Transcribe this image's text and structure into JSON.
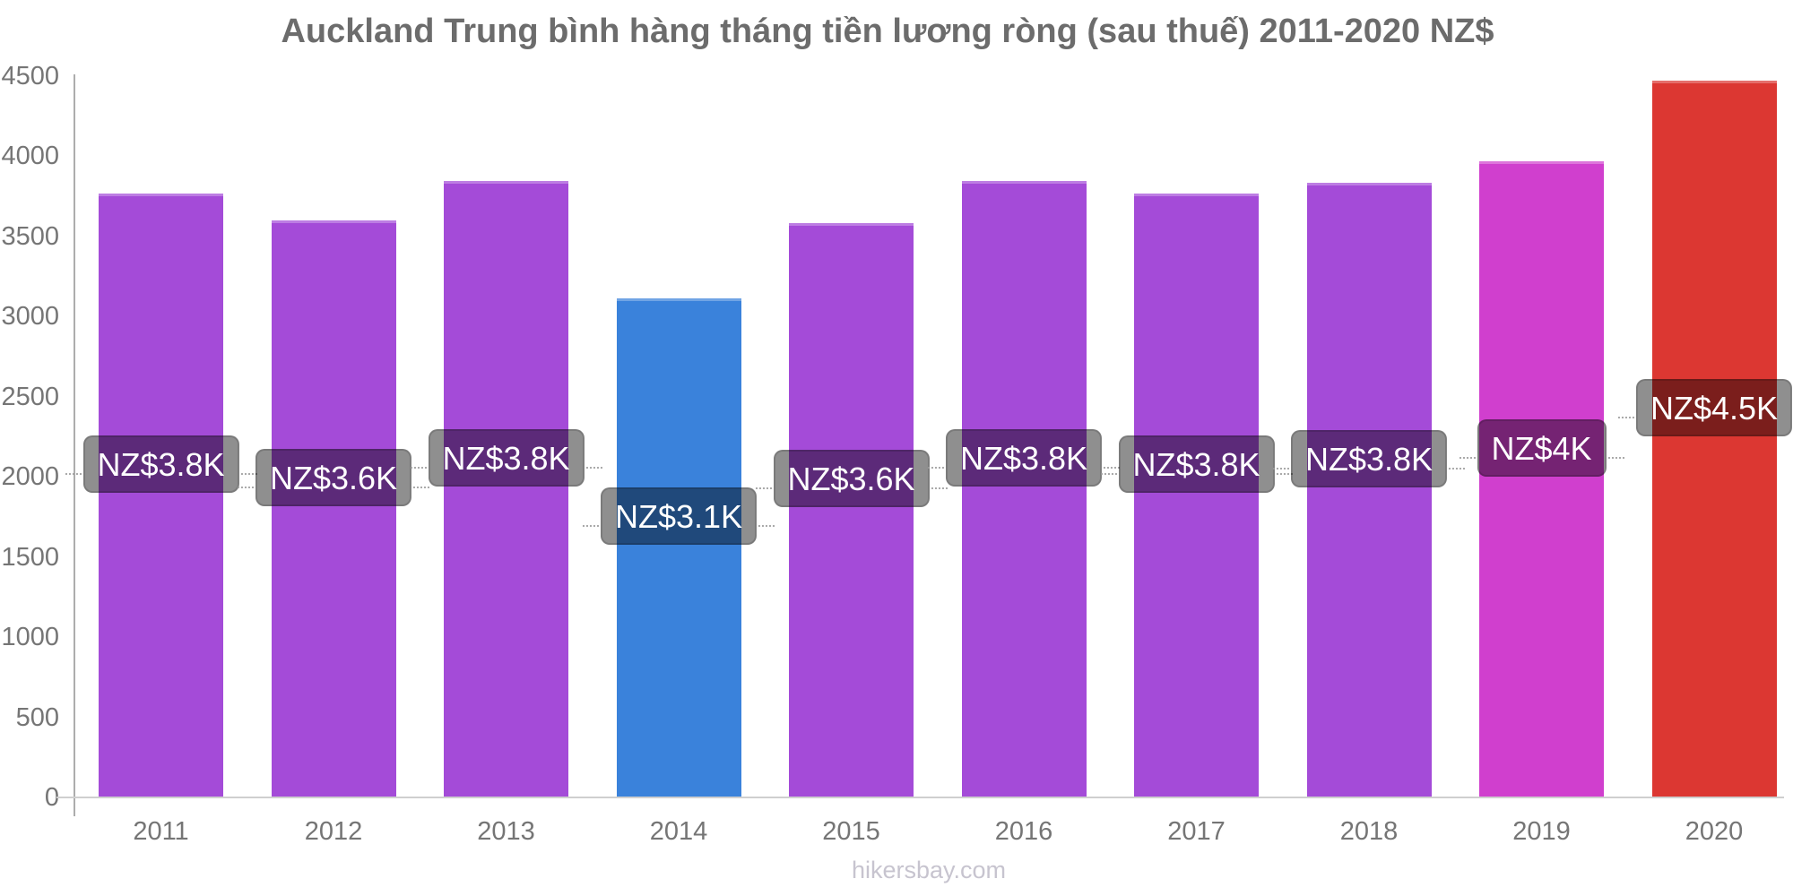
{
  "title": "Auckland Trung bình hàng tháng tiền lương ròng (sau thuế) 2011-2020 NZ$",
  "footer": {
    "link_text": "hikersbay.com"
  },
  "colors": {
    "purple": "#A44BD8",
    "blue": "#3A82DB",
    "magenta": "#D03FCE",
    "red": "#DC3732",
    "label_overlay": "rgba(0,0,0,0.44)",
    "title_text": "#6C6C6C",
    "axis_text": "#757575",
    "footer_text": "#C7C4CF",
    "axis_line": "#ADADAD",
    "baseline_color": "#CFCFCF"
  },
  "y_axis": {
    "ticks": [
      4500,
      4000,
      3500,
      3000,
      2500,
      2000,
      1500,
      1000,
      500,
      0
    ]
  },
  "bars": [
    {
      "year": "2011",
      "value": 3765,
      "label": "NZ$3.8K",
      "color": "#A44BD8"
    },
    {
      "year": "2012",
      "value": 3600,
      "label": "NZ$3.6K",
      "color": "#A44BD8"
    },
    {
      "year": "2013",
      "value": 3845,
      "label": "NZ$3.8K",
      "color": "#A44BD8"
    },
    {
      "year": "2014",
      "value": 3115,
      "label": "NZ$3.1K",
      "color": "#3A82DB"
    },
    {
      "year": "2015",
      "value": 3585,
      "label": "NZ$3.6K",
      "color": "#A44BD8"
    },
    {
      "year": "2016",
      "value": 3845,
      "label": "NZ$3.8K",
      "color": "#A44BD8"
    },
    {
      "year": "2017",
      "value": 3770,
      "label": "NZ$3.8K",
      "color": "#A44BD8"
    },
    {
      "year": "2018",
      "value": 3835,
      "label": "NZ$3.8K",
      "color": "#A44BD8"
    },
    {
      "year": "2019",
      "value": 3970,
      "label": "NZ$4K",
      "color": "#D03FCE"
    },
    {
      "year": "2020",
      "value": 4470,
      "label": "NZ$4.5K",
      "color": "#DC3732"
    }
  ],
  "chart_data": {
    "type": "bar",
    "title": "Auckland Trung bình hàng tháng tiền lương ròng (sau thuế) 2011-2020 NZ$",
    "categories": [
      "2011",
      "2012",
      "2013",
      "2014",
      "2015",
      "2016",
      "2017",
      "2018",
      "2019",
      "2020"
    ],
    "values": [
      3765,
      3600,
      3845,
      3115,
      3585,
      3845,
      3770,
      3835,
      3970,
      4470
    ],
    "data_labels": [
      "NZ$3.8K",
      "NZ$3.6K",
      "NZ$3.8K",
      "NZ$3.1K",
      "NZ$3.6K",
      "NZ$3.8K",
      "NZ$3.8K",
      "NZ$3.8K",
      "NZ$4K",
      "NZ$4.5K"
    ],
    "bar_colors": [
      "#A44BD8",
      "#A44BD8",
      "#A44BD8",
      "#3A82DB",
      "#A44BD8",
      "#A44BD8",
      "#A44BD8",
      "#A44BD8",
      "#D03FCE",
      "#DC3732"
    ],
    "xlabel": "",
    "ylabel": "",
    "ylim": [
      0,
      4500
    ],
    "y_tick_step": 500,
    "currency": "NZ$",
    "grid": false,
    "legend": false,
    "source_watermark": "hikersbay.com"
  }
}
